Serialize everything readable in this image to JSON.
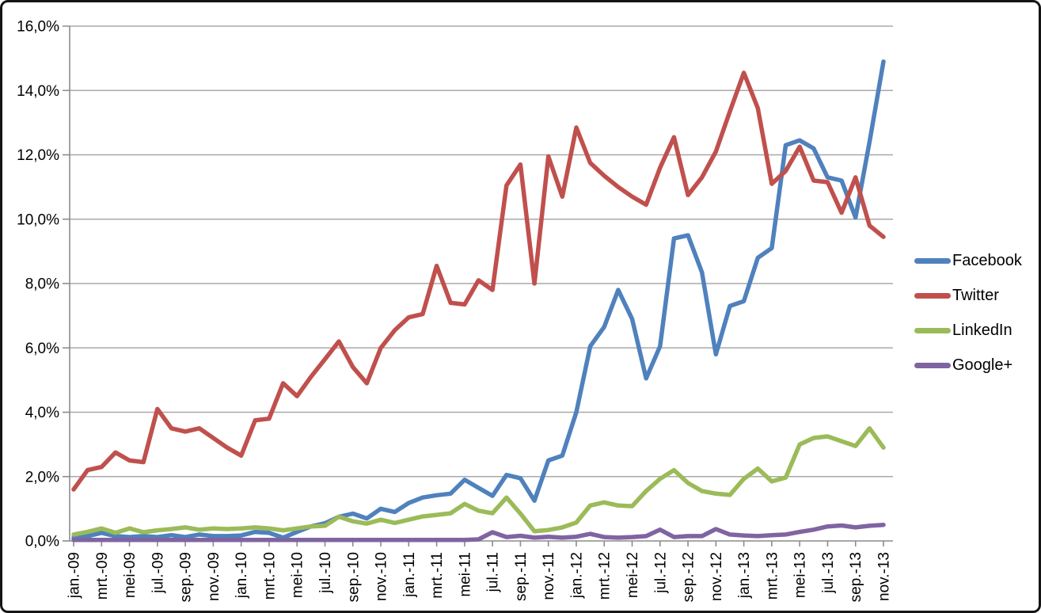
{
  "chart_data": {
    "type": "line",
    "title": "",
    "grid": true,
    "legend_position": "right",
    "gridline_color": "#A8A8A8",
    "axis_color": "#8C8C8C",
    "text_color": "#000000",
    "y_axis": {
      "min": 0,
      "max": 16,
      "step": 2,
      "tick_labels": [
        "0,0%",
        "2,0%",
        "4,0%",
        "6,0%",
        "8,0%",
        "10,0%",
        "12,0%",
        "14,0%",
        "16,0%"
      ]
    },
    "x_axis": {
      "tick_labels": [
        "jan.-09",
        "mrt.-09",
        "mei-09",
        "jul.-09",
        "sep.-09",
        "nov.-09",
        "jan.-10",
        "mrt.-10",
        "mei-10",
        "jul.-10",
        "sep.-10",
        "nov.-10",
        "jan.-11",
        "mrt.-11",
        "mei-11",
        "jul.-11",
        "sep.-11",
        "nov.-11",
        "jan.-12",
        "mrt.-12",
        "mei-12",
        "jul.-12",
        "sep.-12",
        "nov.-12",
        "jan.-13",
        "mrt.-13",
        "mei-13",
        "jul.-13",
        "sep.-13",
        "nov.-13"
      ],
      "months_total": 59,
      "months_per_tick": 2
    },
    "series": [
      {
        "name": "Facebook",
        "color": "#4F81BD",
        "values": [
          0.1,
          0.15,
          0.25,
          0.15,
          0.12,
          0.15,
          0.12,
          0.18,
          0.12,
          0.2,
          0.15,
          0.15,
          0.17,
          0.28,
          0.25,
          0.1,
          0.28,
          0.45,
          0.55,
          0.75,
          0.85,
          0.7,
          1.0,
          0.9,
          1.18,
          1.35,
          1.42,
          1.47,
          1.9,
          1.65,
          1.4,
          2.05,
          1.95,
          1.25,
          2.5,
          2.65,
          4.0,
          6.05,
          6.65,
          7.8,
          6.9,
          5.05,
          6.05,
          9.4,
          9.5,
          8.35,
          5.8,
          7.3,
          7.45,
          8.8,
          9.1,
          12.3,
          12.45,
          12.2,
          11.3,
          11.2,
          10.05,
          12.4,
          14.9
        ]
      },
      {
        "name": "Twitter",
        "color": "#C0504D",
        "values": [
          1.6,
          2.2,
          2.3,
          2.75,
          2.5,
          2.45,
          4.1,
          3.5,
          3.4,
          3.5,
          3.2,
          2.9,
          2.65,
          3.75,
          3.8,
          4.9,
          4.5,
          5.1,
          5.65,
          6.2,
          5.4,
          4.9,
          6.0,
          6.55,
          6.95,
          7.05,
          8.55,
          7.4,
          7.35,
          8.1,
          7.8,
          11.05,
          11.7,
          8.0,
          11.95,
          10.7,
          12.85,
          11.75,
          11.35,
          11.0,
          10.7,
          10.45,
          11.6,
          12.55,
          10.75,
          11.3,
          12.1,
          13.35,
          14.55,
          13.45,
          11.1,
          11.5,
          12.25,
          11.2,
          11.15,
          10.2,
          11.3,
          9.8,
          9.45
        ]
      },
      {
        "name": "LinkedIn",
        "color": "#9BBB59",
        "values": [
          0.2,
          0.28,
          0.39,
          0.25,
          0.39,
          0.27,
          0.33,
          0.37,
          0.42,
          0.35,
          0.39,
          0.37,
          0.39,
          0.42,
          0.39,
          0.33,
          0.39,
          0.45,
          0.47,
          0.75,
          0.61,
          0.54,
          0.66,
          0.56,
          0.66,
          0.76,
          0.81,
          0.86,
          1.15,
          0.94,
          0.86,
          1.35,
          0.85,
          0.3,
          0.34,
          0.42,
          0.57,
          1.1,
          1.2,
          1.1,
          1.08,
          1.55,
          1.93,
          2.2,
          1.8,
          1.55,
          1.47,
          1.43,
          1.93,
          2.25,
          1.85,
          1.97,
          3.0,
          3.2,
          3.25,
          3.1,
          2.95,
          3.5,
          2.9
        ]
      },
      {
        "name": "Google+",
        "color": "#8064A2",
        "values": [
          0.03,
          0.03,
          0.03,
          0.03,
          0.03,
          0.03,
          0.03,
          0.03,
          0.03,
          0.03,
          0.03,
          0.03,
          0.03,
          0.03,
          0.03,
          0.03,
          0.03,
          0.03,
          0.03,
          0.03,
          0.03,
          0.03,
          0.03,
          0.03,
          0.03,
          0.03,
          0.03,
          0.03,
          0.03,
          0.05,
          0.27,
          0.12,
          0.16,
          0.1,
          0.13,
          0.1,
          0.13,
          0.22,
          0.12,
          0.1,
          0.12,
          0.15,
          0.35,
          0.12,
          0.15,
          0.15,
          0.37,
          0.2,
          0.17,
          0.15,
          0.18,
          0.2,
          0.28,
          0.35,
          0.45,
          0.48,
          0.42,
          0.47,
          0.5
        ]
      }
    ]
  },
  "legend": {
    "items": [
      "Facebook",
      "Twitter",
      "LinkedIn",
      "Google+"
    ]
  }
}
